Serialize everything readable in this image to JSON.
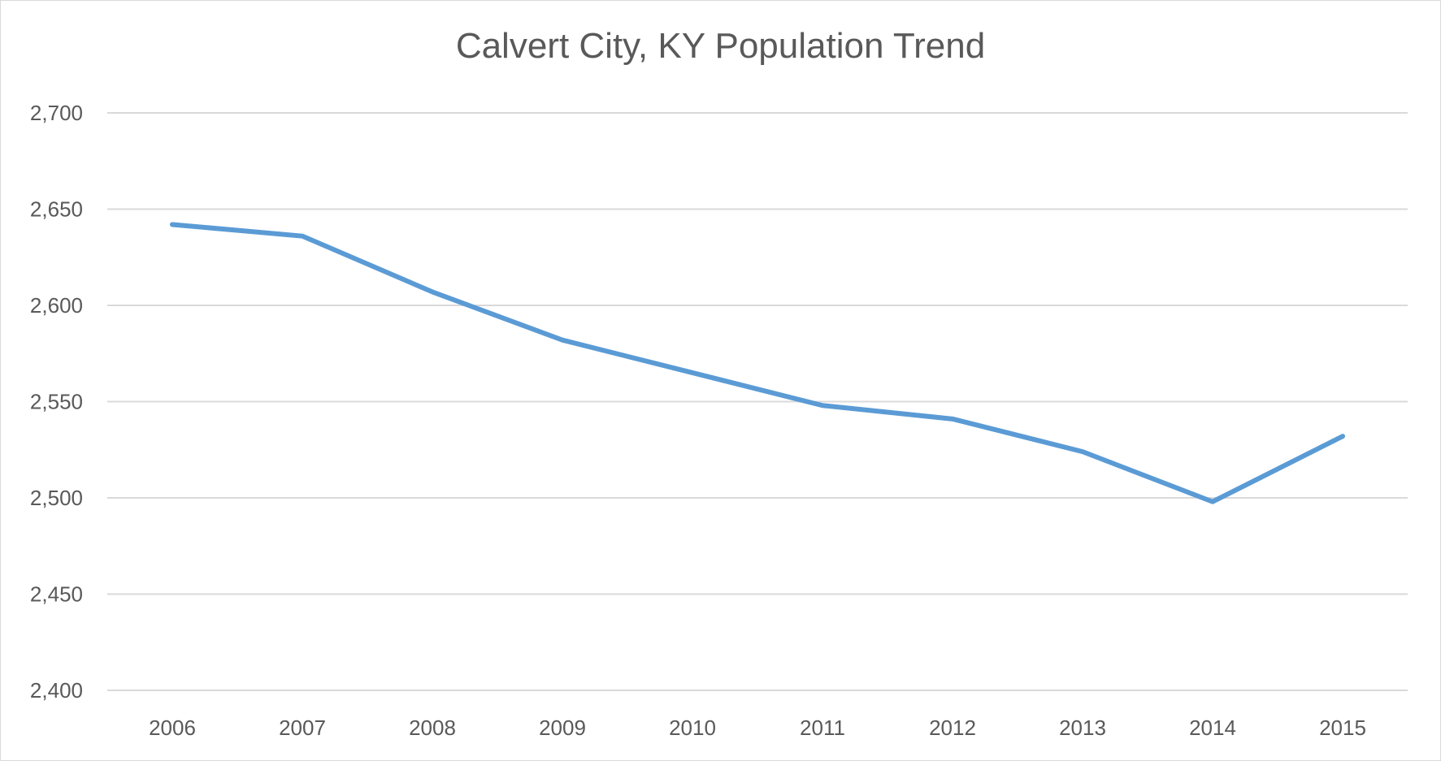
{
  "chart_data": {
    "type": "line",
    "title": "Calvert City, KY Population Trend",
    "xlabel": "",
    "ylabel": "",
    "categories": [
      "2006",
      "2007",
      "2008",
      "2009",
      "2010",
      "2011",
      "2012",
      "2013",
      "2014",
      "2015"
    ],
    "series": [
      {
        "name": "Population",
        "values": [
          2642,
          2636,
          2607,
          2582,
          2565,
          2548,
          2541,
          2524,
          2498,
          2532
        ],
        "color": "#5B9BD5"
      }
    ],
    "ylim": [
      2400,
      2700
    ],
    "yticks": [
      2400,
      2450,
      2500,
      2550,
      2600,
      2650,
      2700
    ],
    "ytick_labels": [
      "2,400",
      "2,450",
      "2,500",
      "2,550",
      "2,600",
      "2,650",
      "2,700"
    ],
    "grid": true,
    "legend": "none"
  }
}
